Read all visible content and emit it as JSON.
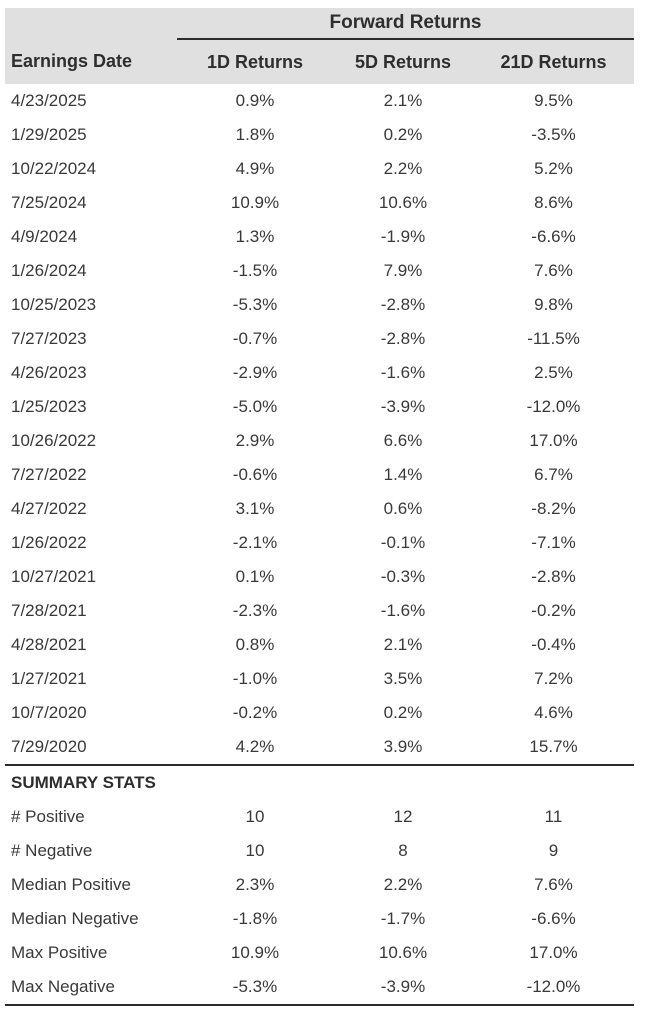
{
  "colors": {
    "header_bg": "#e0e0e0",
    "text": "#393939",
    "header_text": "#2e2e2e",
    "rule": "#2d2d2d"
  },
  "chart_data": {
    "type": "table",
    "group_header": "Forward Returns",
    "columns": [
      "Earnings Date",
      "1D Returns",
      "5D Returns",
      "21D Returns"
    ],
    "rows": [
      [
        "4/23/2025",
        "0.9%",
        "2.1%",
        "9.5%"
      ],
      [
        "1/29/2025",
        "1.8%",
        "0.2%",
        "-3.5%"
      ],
      [
        "10/22/2024",
        "4.9%",
        "2.2%",
        "5.2%"
      ],
      [
        "7/25/2024",
        "10.9%",
        "10.6%",
        "8.6%"
      ],
      [
        "4/9/2024",
        "1.3%",
        "-1.9%",
        "-6.6%"
      ],
      [
        "1/26/2024",
        "-1.5%",
        "7.9%",
        "7.6%"
      ],
      [
        "10/25/2023",
        "-5.3%",
        "-2.8%",
        "9.8%"
      ],
      [
        "7/27/2023",
        "-0.7%",
        "-2.8%",
        "-11.5%"
      ],
      [
        "4/26/2023",
        "-2.9%",
        "-1.6%",
        "2.5%"
      ],
      [
        "1/25/2023",
        "-5.0%",
        "-3.9%",
        "-12.0%"
      ],
      [
        "10/26/2022",
        "2.9%",
        "6.6%",
        "17.0%"
      ],
      [
        "7/27/2022",
        "-0.6%",
        "1.4%",
        "6.7%"
      ],
      [
        "4/27/2022",
        "3.1%",
        "0.6%",
        "-8.2%"
      ],
      [
        "1/26/2022",
        "-2.1%",
        "-0.1%",
        "-7.1%"
      ],
      [
        "10/27/2021",
        "0.1%",
        "-0.3%",
        "-2.8%"
      ],
      [
        "7/28/2021",
        "-2.3%",
        "-1.6%",
        "-0.2%"
      ],
      [
        "4/28/2021",
        "0.8%",
        "2.1%",
        "-0.4%"
      ],
      [
        "1/27/2021",
        "-1.0%",
        "3.5%",
        "7.2%"
      ],
      [
        "10/7/2020",
        "-0.2%",
        "0.2%",
        "4.6%"
      ],
      [
        "7/29/2020",
        "4.2%",
        "3.9%",
        "15.7%"
      ]
    ],
    "summary": {
      "title": "SUMMARY STATS",
      "rows": [
        [
          "# Positive",
          "10",
          "12",
          "11"
        ],
        [
          "# Negative",
          "10",
          "8",
          "9"
        ],
        [
          "Median Positive",
          "2.3%",
          "2.2%",
          "7.6%"
        ],
        [
          "Median Negative",
          "-1.8%",
          "-1.7%",
          "-6.6%"
        ],
        [
          "Max Positive",
          "10.9%",
          "10.6%",
          "17.0%"
        ],
        [
          "Max Negative",
          "-5.3%",
          "-3.9%",
          "-12.0%"
        ]
      ]
    }
  }
}
